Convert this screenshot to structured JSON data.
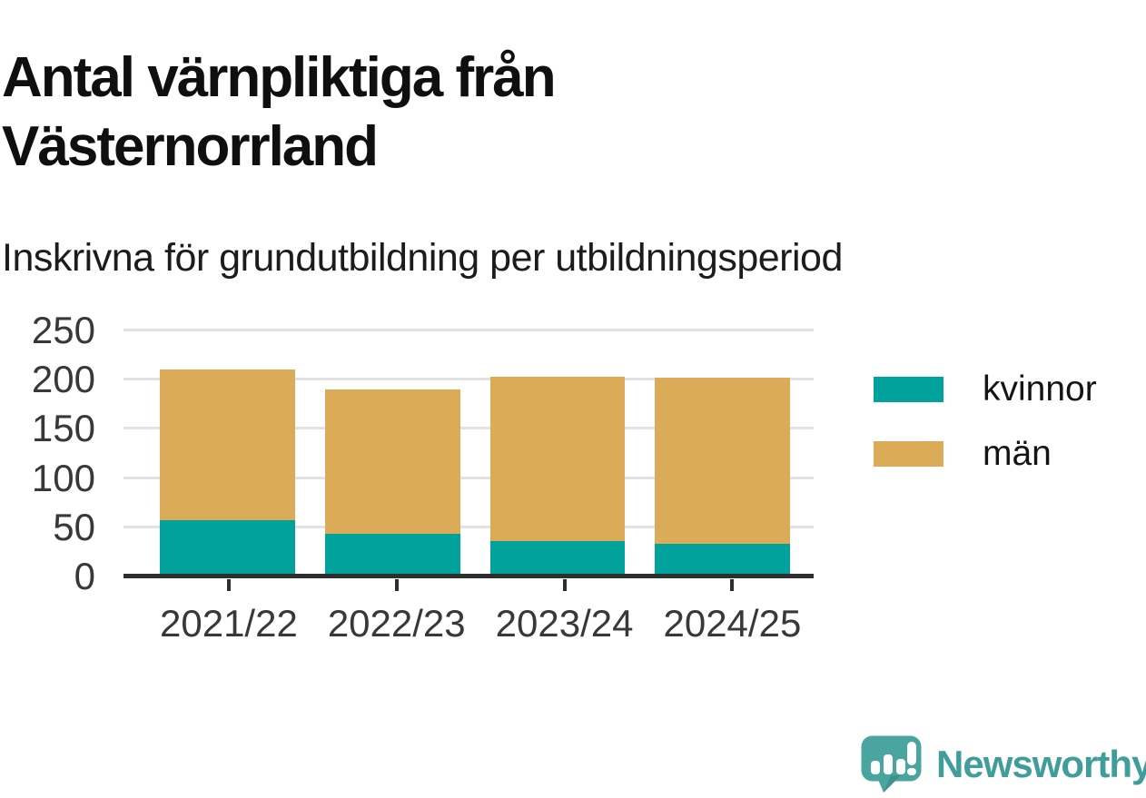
{
  "title": "Antal värnpliktiga från Västernorrland",
  "subtitle": "Inskrivna för grundutbildning per utbildningsperiod",
  "branding": {
    "name": "Newsworthy",
    "color": "#3f9e9a",
    "icon": "speech-bubble-bar-chart"
  },
  "colors": {
    "kvinnor": "#00a29b",
    "man": "#dbab57",
    "axis": "#2e2e2e",
    "gridline": "#e2e2e2",
    "tick_text": "#383838",
    "title_text": "#0f0f0f"
  },
  "chart_data": {
    "type": "bar",
    "stacked": true,
    "title": "Antal värnpliktiga från Västernorrland",
    "subtitle": "Inskrivna för grundutbildning per utbildningsperiod",
    "categories": [
      "2021/22",
      "2022/23",
      "2023/24",
      "2024/25"
    ],
    "series": [
      {
        "name": "kvinnor",
        "color": "#00a29b",
        "values": [
          57,
          43,
          36,
          33
        ]
      },
      {
        "name": "män",
        "color": "#dbab57",
        "values": [
          153,
          147,
          167,
          169
        ]
      }
    ],
    "totals": [
      210,
      190,
      203,
      202
    ],
    "xlabel": "",
    "ylabel": "",
    "ylim": [
      0,
      250
    ],
    "yticks": [
      0,
      50,
      100,
      150,
      200,
      250
    ],
    "grid": "horizontal",
    "legend_position": "right"
  }
}
